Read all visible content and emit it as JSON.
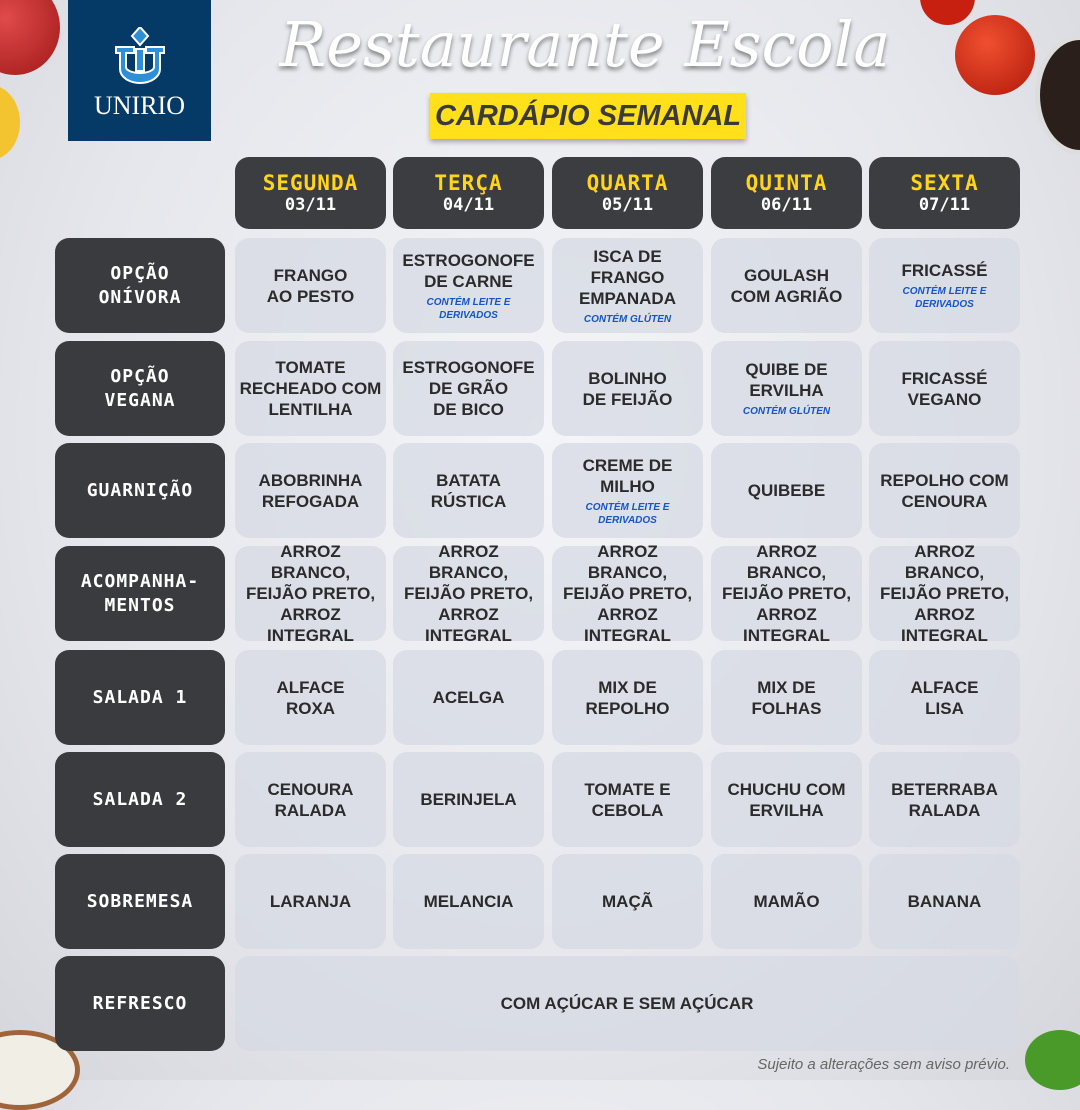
{
  "logo": {
    "text": "UNIRIO",
    "brand_color": "#053a66"
  },
  "title": "Restaurante Escola",
  "subtitle": "CARDÁPIO SEMANAL",
  "days": [
    {
      "name": "SEGUNDA",
      "date": "03/11"
    },
    {
      "name": "TERÇA",
      "date": "04/11"
    },
    {
      "name": "QUARTA",
      "date": "05/11"
    },
    {
      "name": "QUINTA",
      "date": "06/11"
    },
    {
      "name": "SEXTA",
      "date": "07/11"
    }
  ],
  "rows": [
    {
      "label": "OPÇÃO\nONÍVORA",
      "cells": [
        {
          "text": "FRANGO\nAO  PESTO"
        },
        {
          "text": "ESTROGONOFE\nDE CARNE",
          "note": "CONTÉM LEITE E\nDERIVADOS"
        },
        {
          "text": "ISCA DE FRANGO\nEMPANADA",
          "note": "CONTÉM GLÚTEN"
        },
        {
          "text": "GOULASH\nCOM AGRIÃO"
        },
        {
          "text": "FRICASSÉ",
          "note": "CONTÉM LEITE E\nDERIVADOS"
        }
      ]
    },
    {
      "label": "OPÇÃO\nVEGANA",
      "cells": [
        {
          "text": "TOMATE\nRECHEADO COM\nLENTILHA"
        },
        {
          "text": "ESTROGONOFE\nDE GRÃO\nDE BICO"
        },
        {
          "text": "BOLINHO\nDE FEIJÃO"
        },
        {
          "text": "QUIBE DE\nERVILHA",
          "note": "CONTÉM GLÚTEN"
        },
        {
          "text": "FRICASSÉ\nVEGANO"
        }
      ]
    },
    {
      "label": "GUARNIÇÃO",
      "cells": [
        {
          "text": "ABOBRINHA\nREFOGADA"
        },
        {
          "text": "BATATA\nRÚSTICA"
        },
        {
          "text": "CREME DE\nMILHO",
          "note": "CONTÉM LEITE E\nDERIVADOS"
        },
        {
          "text": "QUIBEBE"
        },
        {
          "text": "REPOLHO COM\nCENOURA"
        }
      ]
    },
    {
      "label": "ACOMPANHA-\nMENTOS",
      "cells": [
        {
          "text": "ARROZ BRANCO,\nFEIJÃO PRETO,\nARROZ INTEGRAL"
        },
        {
          "text": "ARROZ BRANCO,\nFEIJÃO PRETO,\nARROZ INTEGRAL"
        },
        {
          "text": "ARROZ BRANCO,\nFEIJÃO PRETO,\nARROZ INTEGRAL"
        },
        {
          "text": "ARROZ BRANCO,\nFEIJÃO PRETO,\nARROZ INTEGRAL"
        },
        {
          "text": "ARROZ BRANCO,\nFEIJÃO PRETO,\nARROZ INTEGRAL"
        }
      ]
    },
    {
      "label": "SALADA 1",
      "cells": [
        {
          "text": "ALFACE\nROXA"
        },
        {
          "text": "ACELGA"
        },
        {
          "text": "MIX DE\nREPOLHO"
        },
        {
          "text": "MIX DE\nFOLHAS"
        },
        {
          "text": "ALFACE\nLISA"
        }
      ]
    },
    {
      "label": "SALADA 2",
      "cells": [
        {
          "text": "CENOURA\nRALADA"
        },
        {
          "text": "BERINJELA"
        },
        {
          "text": "TOMATE E\nCEBOLA"
        },
        {
          "text": "CHUCHU COM\nERVILHA"
        },
        {
          "text": "BETERRABA\nRALADA"
        }
      ]
    },
    {
      "label": "SOBREMESA",
      "cells": [
        {
          "text": "LARANJA"
        },
        {
          "text": "MELANCIA"
        },
        {
          "text": "MAÇÃ"
        },
        {
          "text": "MAMÃO"
        },
        {
          "text": "BANANA"
        }
      ]
    }
  ],
  "refresco": {
    "label": "REFRESCO",
    "text": "COM AÇÚCAR E SEM AÇÚCAR"
  },
  "footer": "Sujeito a alterações sem aviso prévio.",
  "colors": {
    "day_name": "#ffd51a",
    "note": "#1556c4",
    "label_bg": "#3a3b3f",
    "subtitle_bg": "#ffe01a"
  }
}
